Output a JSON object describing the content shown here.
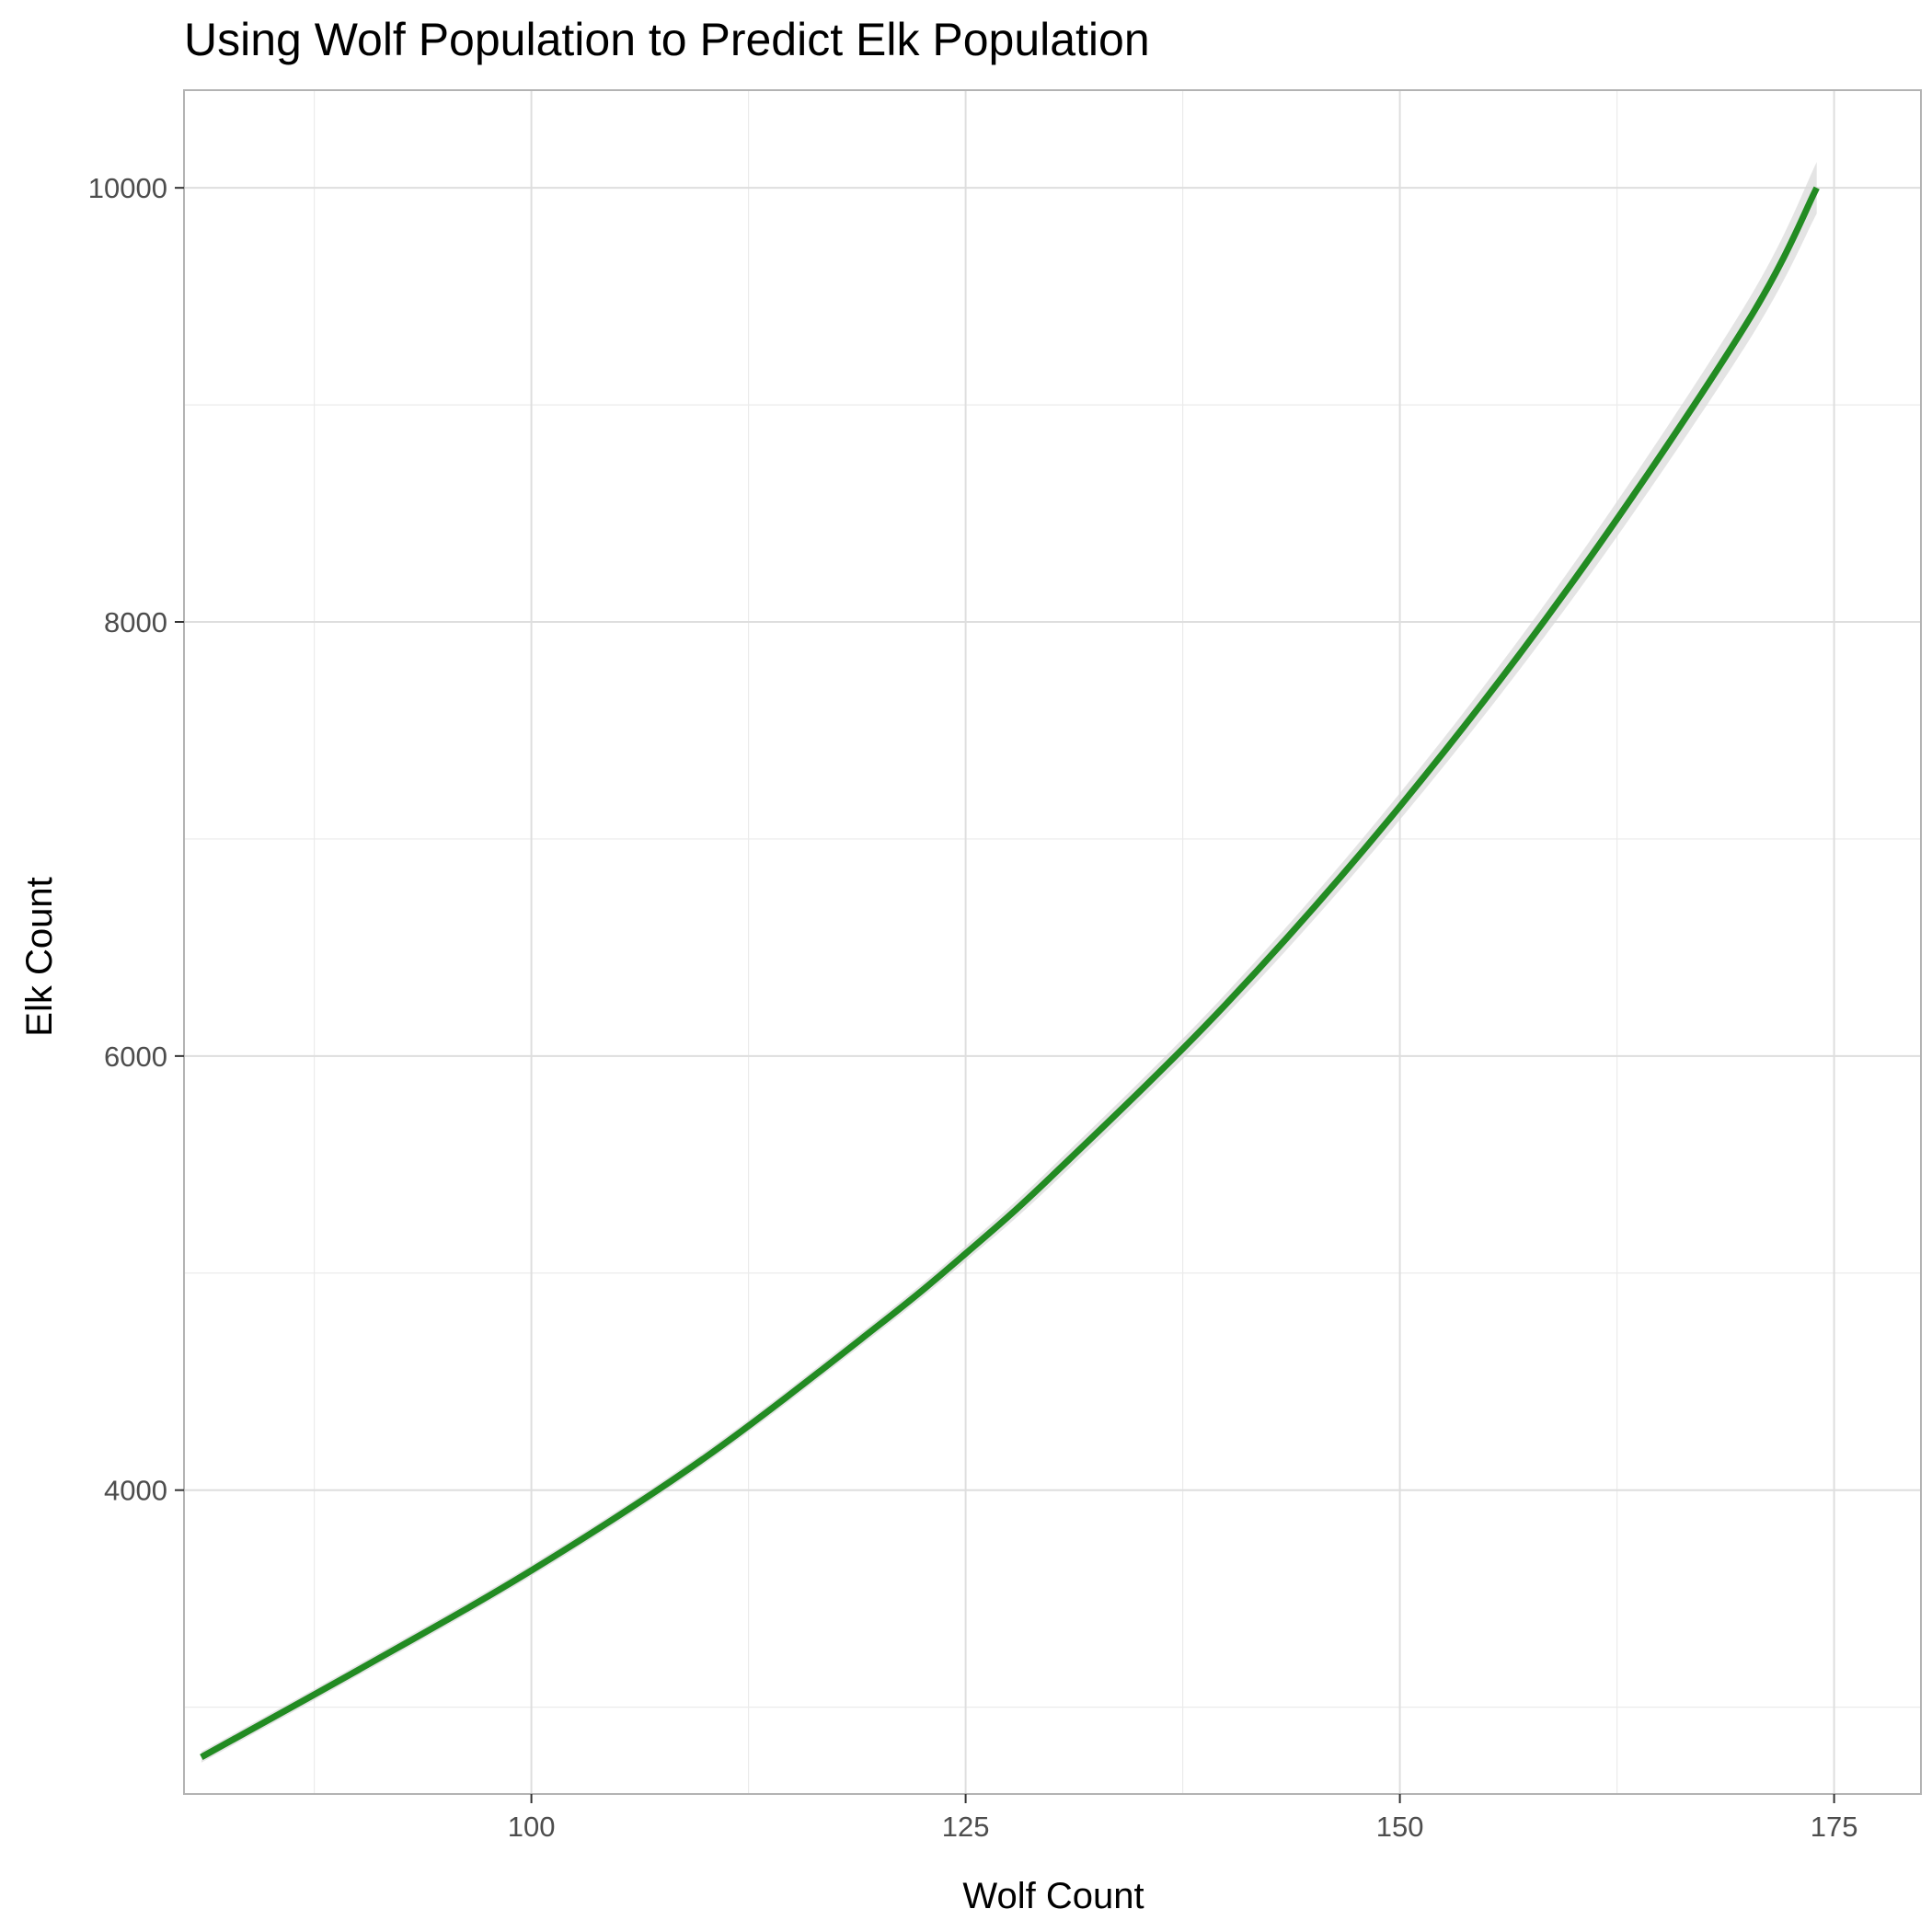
{
  "chart_data": {
    "type": "line",
    "title": "Using Wolf Population to Predict Elk Population",
    "xlabel": "Wolf Count",
    "ylabel": "Elk Count",
    "xlim": [
      80,
      180
    ],
    "ylim": [
      2600,
      10450
    ],
    "x_ticks": [
      100,
      125,
      150,
      175
    ],
    "y_ticks": [
      4000,
      6000,
      8000,
      10000
    ],
    "grid": true,
    "legend": "none",
    "series": [
      {
        "x": [
          81,
          90,
          100,
          110,
          120,
          125,
          130,
          140,
          150,
          160,
          170,
          174
        ],
        "y": [
          2770,
          3170,
          3630,
          4150,
          4760,
          5090,
          5450,
          6240,
          7150,
          8190,
          9380,
          10000
        ],
        "color": "#228b22",
        "ci_band": true,
        "ci_color": "#d9d9d9"
      }
    ],
    "colors": {
      "line": "#228b22",
      "band": "#d9d9d9",
      "grid": "#ebebeb",
      "panel_border": "#b3b3b3",
      "tick_text": "#4d4d4d"
    }
  }
}
